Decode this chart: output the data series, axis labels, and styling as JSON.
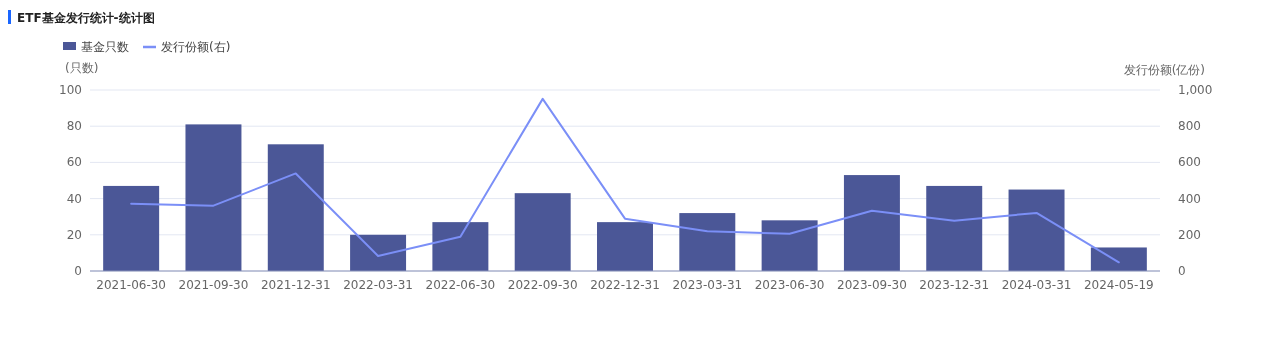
{
  "chart_data": {
    "type": "bar",
    "title": "ETF基金发行统计-统计图",
    "categories": [
      "2021-06-30",
      "2021-09-30",
      "2021-12-31",
      "2022-03-31",
      "2022-06-30",
      "2022-09-30",
      "2022-12-31",
      "2023-03-31",
      "2023-06-30",
      "2023-09-30",
      "2023-12-31",
      "2024-03-31",
      "2024-05-19"
    ],
    "series": [
      {
        "name": "基金只数",
        "color": "#4b5797",
        "values": [
          47,
          81,
          70,
          20,
          27,
          43,
          27,
          32,
          28,
          53,
          47,
          45,
          13
        ]
      },
      {
        "name": "发行份额(右)",
        "type": "line",
        "axis": "y2",
        "color": "#7b8ff7",
        "values": [
          372,
          361,
          539,
          83,
          189,
          951,
          289,
          219,
          206,
          333,
          278,
          321,
          48
        ]
      }
    ],
    "ylabel": "(只数)",
    "y2label": "发行份额(亿份)",
    "ylim": [
      0,
      100
    ],
    "yticks": [
      0,
      20,
      40,
      60,
      80,
      100
    ],
    "y2lim": [
      0,
      1000
    ],
    "y2ticks": [
      0,
      200,
      400,
      600,
      800,
      {
        "value": 1000,
        "label": "1,000"
      }
    ],
    "grid": "y",
    "legend": "top left",
    "marker": "none"
  }
}
